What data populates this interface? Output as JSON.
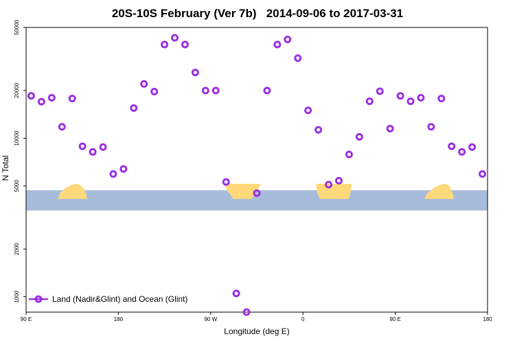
{
  "chart_data": {
    "type": "scatter",
    "title": "20S-10S February (Ver 7b)   2014-09-06 to 2017-03-31",
    "xlabel": "Longitude (deg E)",
    "ylabel": "N Total",
    "y_scale": "log",
    "ylim": [
      800,
      50000
    ],
    "x_ticks": [
      {
        "value": 90,
        "label": "90 E"
      },
      {
        "value": 180,
        "label": "180"
      },
      {
        "value": 270,
        "label": "90 W"
      },
      {
        "value": 360,
        "label": "0"
      },
      {
        "value": 450,
        "label": "90 E"
      },
      {
        "value": 540,
        "label": "180"
      }
    ],
    "xlim": [
      90,
      540
    ],
    "y_ticks": [
      1000,
      2000,
      5000,
      10000,
      20000,
      50000
    ],
    "grid": false,
    "legend": {
      "position": "bottom-left",
      "label": "Land (Nadir&Glint) and Ocean (Glint)"
    },
    "colors": {
      "marker": "#9b30e0",
      "ocean": "#a7bcda",
      "land": "#ffd97a"
    },
    "band_y_range": [
      3500,
      4700
    ],
    "series": [
      {
        "name": "Land (Nadir&Glint) and Ocean (Glint)",
        "x": [
          95,
          105,
          115,
          125,
          135,
          145,
          155,
          165,
          175,
          185,
          195,
          205,
          215,
          225,
          235,
          245,
          255,
          265,
          275,
          285,
          295,
          305,
          315,
          325,
          335,
          345,
          355,
          365,
          375,
          385,
          395,
          405,
          415,
          425,
          435,
          445,
          455,
          465,
          475,
          485,
          495,
          505,
          515,
          525,
          535
        ],
        "y": [
          18500,
          17000,
          18000,
          11800,
          17800,
          8900,
          8200,
          8800,
          5950,
          6400,
          15500,
          22000,
          19700,
          39000,
          43000,
          39000,
          26000,
          20000,
          20000,
          5300,
          1050,
          800,
          4500,
          20000,
          39000,
          42000,
          32000,
          15000,
          11300,
          5100,
          5400,
          7900,
          10200,
          17100,
          19800,
          11500,
          18500,
          17100,
          18000,
          11800,
          17800,
          8900,
          8200,
          8800,
          5950
        ]
      }
    ]
  }
}
